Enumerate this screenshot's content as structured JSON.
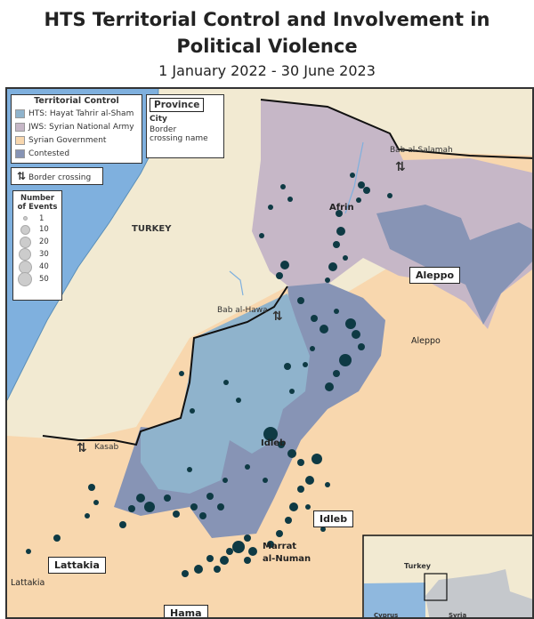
{
  "title_line1": "HTS Territorial Control and Involvement in",
  "title_line2": "Political Violence",
  "subtitle": "1 January 2022 - 30 June 2023",
  "legend": {
    "title": "Territorial Control",
    "items": [
      {
        "label": "HTS: Hayat Tahrir al-Sham",
        "color": "#8fb3cc"
      },
      {
        "label": "JWS: Syrian National Army",
        "color": "#c6b7c7"
      },
      {
        "label": "Syrian Government",
        "color": "#f8d7ae"
      },
      {
        "label": "Contested",
        "color": "#8794b5"
      }
    ],
    "border_crossing": "Border crossing",
    "events_title1": "Number",
    "events_title2": "of Events",
    "event_sizes": [
      "1",
      "10",
      "20",
      "30",
      "40",
      "50"
    ],
    "key_province": "Province",
    "key_city": "City",
    "key_crossing": "Border crossing name"
  },
  "labels": {
    "turkey": "TURKEY",
    "afrin": "Afrin",
    "aleppo_city": "Aleppo",
    "idleb_city": "Idleb",
    "marrat": "Marrat\nal-Numan",
    "lattakia_city": "Lattakia",
    "bab_salamah": "Bab al-Salamah",
    "bab_hawa": "Bab al-Hawa",
    "kasab": "Kasab"
  },
  "provinces": {
    "aleppo": "Aleppo",
    "idleb": "Idleb",
    "lattakia": "Lattakia",
    "hama": "Hama"
  },
  "inset": {
    "turkey": "Turkey",
    "cyprus": "Cyprus",
    "syria": "Syria"
  },
  "colors": {
    "event_dot": "#0e3a44",
    "sea": "#7fb0de",
    "land": "#f2ead2"
  }
}
